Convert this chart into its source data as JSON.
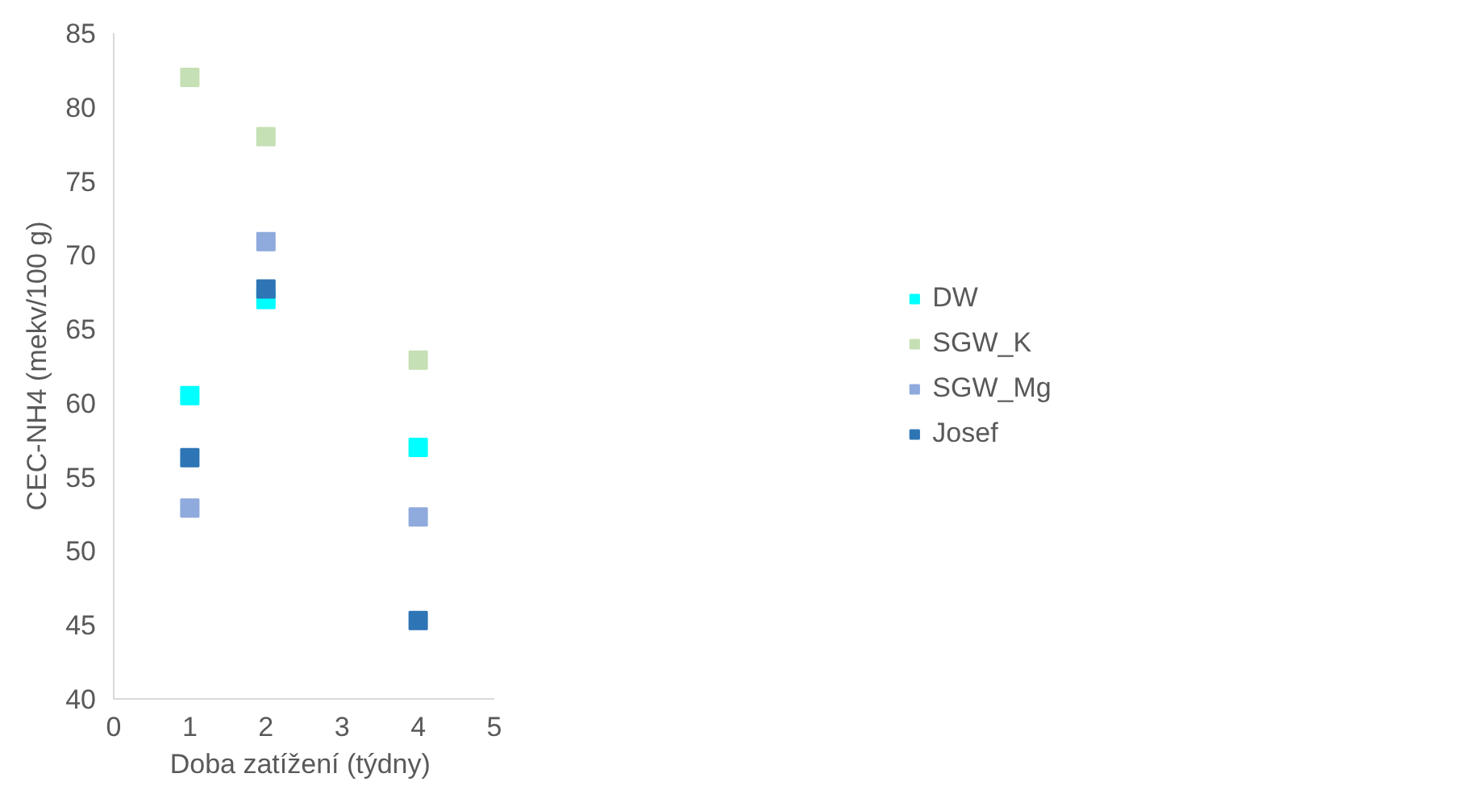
{
  "chart_data": {
    "type": "scatter",
    "xlabel": "Doba zatížení  (týdny)",
    "ylabel": "CEC-NH4 (mekv/100 g)",
    "x": [
      1,
      2,
      4
    ],
    "series": [
      {
        "name": "DW",
        "color": "#00ffff",
        "values": [
          60.5,
          67.0,
          57.0
        ]
      },
      {
        "name": "SGW_K",
        "color": "#c5e0b4",
        "values": [
          82.0,
          78.0,
          62.9
        ]
      },
      {
        "name": "SGW_Mg",
        "color": "#8faadc",
        "values": [
          52.9,
          70.9,
          52.3
        ]
      },
      {
        "name": "Josef",
        "color": "#2e75b6",
        "values": [
          56.3,
          67.7,
          45.3
        ]
      }
    ],
    "xlim": [
      0,
      5
    ],
    "xticks": [
      0,
      1,
      2,
      3,
      4,
      5
    ],
    "ylim": [
      40,
      85
    ],
    "yticks": [
      40,
      45,
      50,
      55,
      60,
      65,
      70,
      75,
      80,
      85
    ],
    "grid": false,
    "legend": "right",
    "marker": "square"
  }
}
